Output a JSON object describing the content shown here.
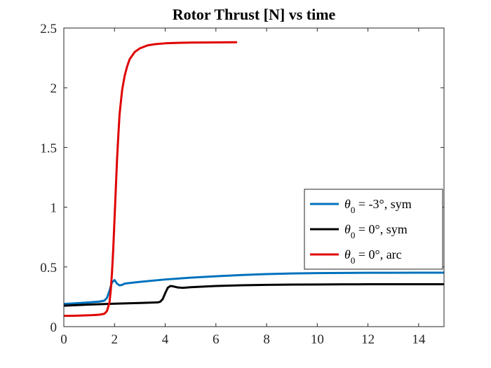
{
  "chart_data": {
    "type": "line",
    "title": "Rotor Thrust [N] vs time",
    "xlabel": "",
    "ylabel": "",
    "xlim": [
      0,
      15
    ],
    "ylim": [
      0,
      2.5
    ],
    "xticks": [
      0,
      2,
      4,
      6,
      8,
      10,
      12,
      14
    ],
    "yticks": [
      0,
      0.5,
      1,
      1.5,
      2,
      2.5
    ],
    "xtick_labels": [
      "0",
      "2",
      "4",
      "6",
      "8",
      "10",
      "12",
      "14"
    ],
    "ytick_labels": [
      "0",
      "0.5",
      "1",
      "1.5",
      "2",
      "2.5"
    ],
    "grid": false,
    "legend_position": "right-middle",
    "series": [
      {
        "name": "θ0 = -3°, sym",
        "legend": {
          "symbol": "θ",
          "subscript": "0",
          "rest": " = -3°, sym"
        },
        "color": "#0072BD",
        "x": [
          0,
          0.5,
          1.0,
          1.4,
          1.6,
          1.7,
          1.8,
          1.9,
          2.0,
          2.1,
          2.2,
          2.3,
          2.4,
          2.5,
          3,
          4,
          5,
          6,
          7,
          8,
          9,
          10,
          11,
          12,
          13,
          14,
          15
        ],
        "y": [
          0.19,
          0.196,
          0.203,
          0.21,
          0.218,
          0.24,
          0.3,
          0.37,
          0.39,
          0.36,
          0.345,
          0.35,
          0.36,
          0.363,
          0.375,
          0.395,
          0.41,
          0.422,
          0.432,
          0.44,
          0.445,
          0.448,
          0.45,
          0.451,
          0.451,
          0.452,
          0.452
        ]
      },
      {
        "name": "θ0 = 0°, sym",
        "legend": {
          "symbol": "θ",
          "subscript": "0",
          "rest": " = 0°, sym"
        },
        "color": "#000000",
        "x": [
          0,
          1,
          2,
          3,
          3.7,
          3.8,
          3.9,
          4.0,
          4.1,
          4.2,
          4.3,
          4.5,
          4.7,
          5,
          6,
          7,
          8,
          9,
          10,
          11,
          12,
          13,
          14,
          15
        ],
        "y": [
          0.175,
          0.185,
          0.192,
          0.198,
          0.203,
          0.208,
          0.23,
          0.28,
          0.325,
          0.34,
          0.338,
          0.328,
          0.325,
          0.33,
          0.34,
          0.346,
          0.35,
          0.352,
          0.353,
          0.354,
          0.355,
          0.355,
          0.355,
          0.355
        ]
      },
      {
        "name": "θ0 = 0°, arc",
        "legend": {
          "symbol": "θ",
          "subscript": "0",
          "rest": " = 0°, arc"
        },
        "color": "#E00000",
        "x": [
          0,
          0.5,
          1.0,
          1.4,
          1.6,
          1.7,
          1.8,
          1.85,
          1.9,
          1.95,
          2.0,
          2.05,
          2.1,
          2.15,
          2.2,
          2.3,
          2.4,
          2.5,
          2.6,
          2.8,
          3.0,
          3.3,
          3.6,
          4.0,
          4.5,
          5,
          6,
          6.8
        ],
        "y": [
          0.09,
          0.092,
          0.095,
          0.1,
          0.108,
          0.13,
          0.2,
          0.3,
          0.45,
          0.65,
          0.9,
          1.15,
          1.4,
          1.6,
          1.78,
          1.98,
          2.1,
          2.18,
          2.24,
          2.3,
          2.33,
          2.355,
          2.365,
          2.372,
          2.376,
          2.378,
          2.38,
          2.381
        ]
      }
    ]
  }
}
